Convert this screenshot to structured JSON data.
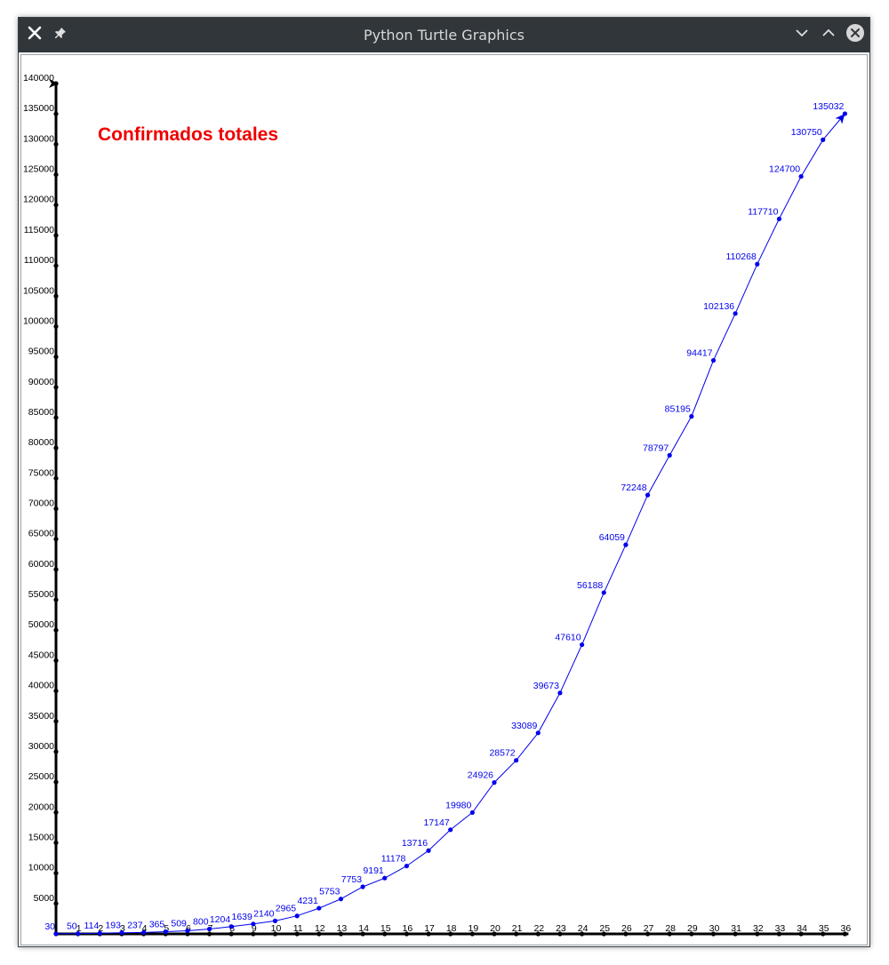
{
  "window": {
    "title": "Python Turtle Graphics",
    "titlebar_color": "#31363b"
  },
  "chart_data": {
    "type": "line",
    "title": "Confirmados totales",
    "title_color": "#ee0000",
    "series_color": "#0000ee",
    "axis_color": "#000000",
    "xlabel": "",
    "ylabel": "",
    "x": [
      0,
      1,
      2,
      3,
      4,
      5,
      6,
      7,
      8,
      9,
      10,
      11,
      12,
      13,
      14,
      15,
      16,
      17,
      18,
      19,
      20,
      21,
      22,
      23,
      24,
      25,
      26,
      27,
      28,
      29,
      30,
      31,
      32,
      33,
      34,
      35,
      36
    ],
    "x_tick_labels": [
      "1",
      "2",
      "3",
      "4",
      "5",
      "6",
      "7",
      "8",
      "9",
      "10",
      "11",
      "12",
      "13",
      "14",
      "15",
      "16",
      "17",
      "18",
      "19",
      "20",
      "21",
      "22",
      "23",
      "24",
      "25",
      "26",
      "27",
      "28",
      "29",
      "30",
      "31",
      "32",
      "33",
      "34",
      "35",
      "36"
    ],
    "values": [
      30,
      50,
      114,
      193,
      237,
      365,
      509,
      800,
      1204,
      1639,
      2140,
      2965,
      4231,
      5753,
      7753,
      9191,
      11178,
      13716,
      17147,
      19980,
      24926,
      28572,
      33089,
      39673,
      47610,
      56188,
      64059,
      72248,
      78797,
      85195,
      94417,
      102136,
      110268,
      117710,
      124700,
      130750,
      135032
    ],
    "y_ticks": [
      5000,
      10000,
      15000,
      20000,
      25000,
      30000,
      35000,
      40000,
      45000,
      50000,
      55000,
      60000,
      65000,
      70000,
      75000,
      80000,
      85000,
      90000,
      95000,
      100000,
      105000,
      110000,
      115000,
      120000,
      125000,
      130000,
      135000,
      140000
    ],
    "xlim": [
      0,
      36
    ],
    "ylim": [
      0,
      140000
    ],
    "grid": false
  }
}
